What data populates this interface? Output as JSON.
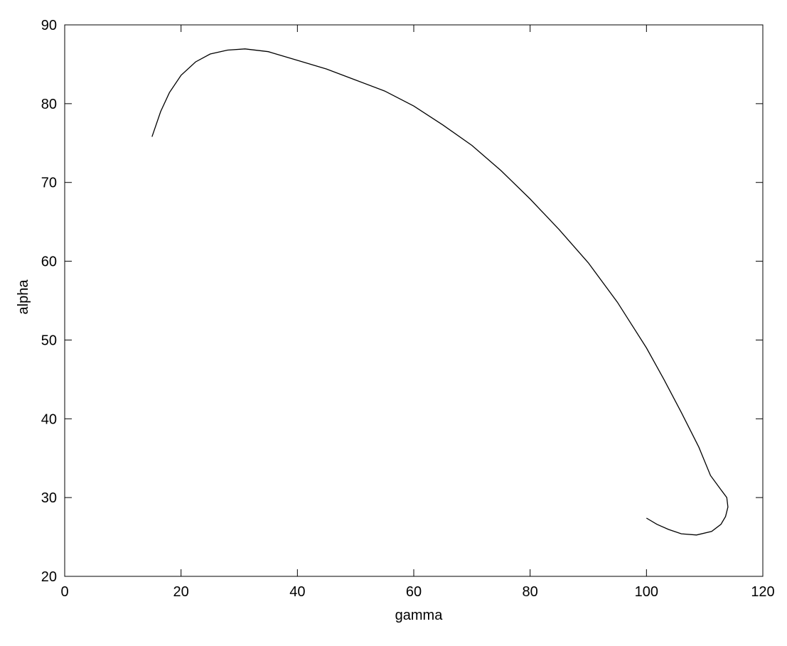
{
  "chart_data": {
    "type": "line",
    "title": "",
    "xlabel": "gamma",
    "ylabel": "alpha",
    "xlim": [
      0,
      120
    ],
    "ylim": [
      20,
      90
    ],
    "xticks": [
      0,
      20,
      40,
      60,
      80,
      100,
      120
    ],
    "yticks": [
      20,
      30,
      40,
      50,
      60,
      70,
      80,
      90
    ],
    "grid": false,
    "line_color": "#000000",
    "series": [
      {
        "x": [
          15,
          16.5,
          18,
          20,
          22.5,
          25,
          28,
          31,
          35,
          40,
          45,
          50,
          55,
          60,
          65,
          70,
          75,
          80,
          85,
          90,
          95,
          100,
          103,
          106,
          109,
          111,
          112.8,
          113.8,
          114,
          113.6,
          112.8,
          111.2,
          108.6,
          106,
          103.8,
          101.8,
          100
        ],
        "y": [
          75.8,
          79.0,
          81.4,
          83.6,
          85.3,
          86.3,
          86.8,
          86.95,
          86.6,
          85.5,
          84.4,
          83.0,
          81.6,
          79.7,
          77.3,
          74.7,
          71.5,
          67.9,
          64.0,
          59.8,
          54.8,
          49.0,
          45.0,
          40.8,
          36.4,
          32.8,
          31.0,
          30.0,
          28.8,
          27.6,
          26.6,
          25.7,
          25.25,
          25.4,
          25.95,
          26.6,
          27.4
        ]
      }
    ]
  }
}
